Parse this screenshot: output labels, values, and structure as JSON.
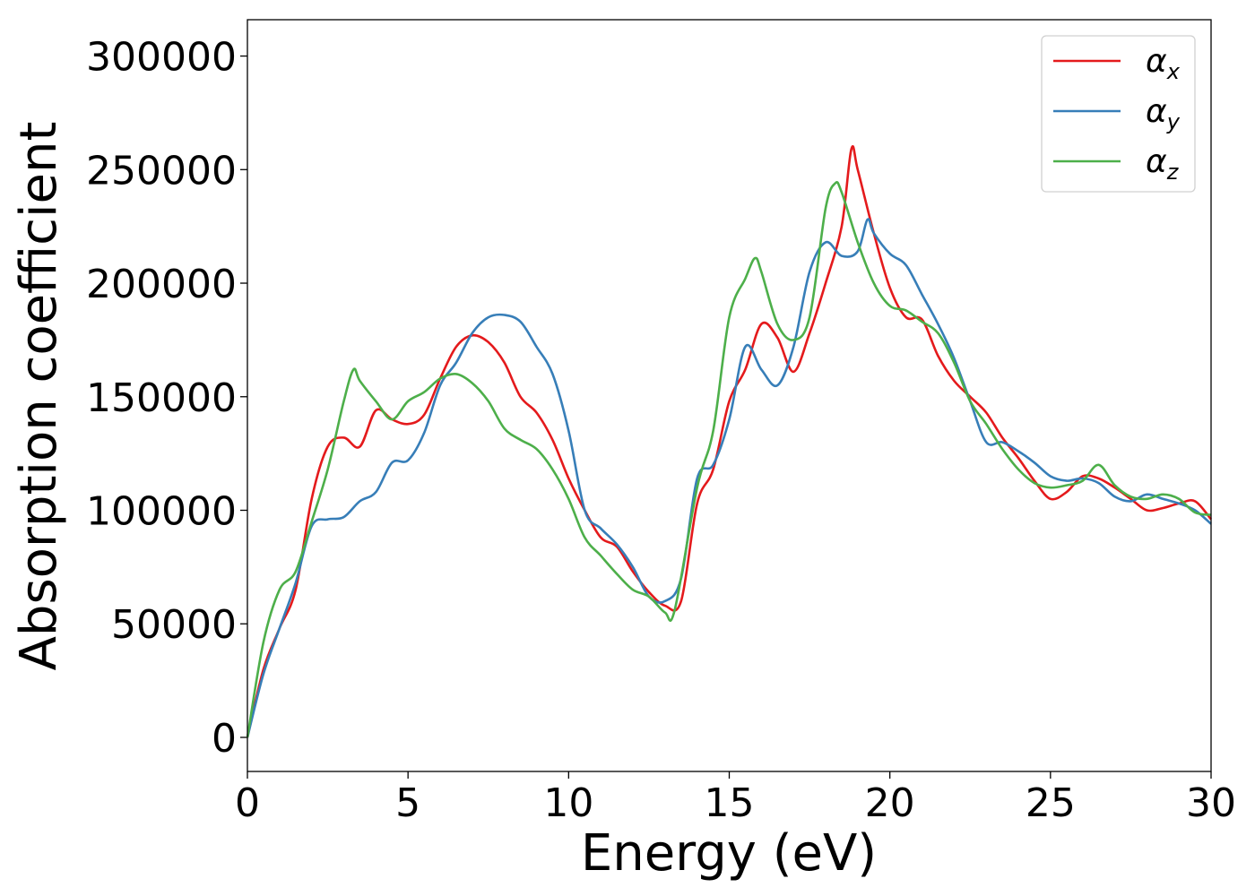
{
  "chart_data": {
    "type": "line",
    "title": "",
    "xlabel": "Energy (eV)",
    "ylabel": "Absorption coefficient",
    "xlim": [
      0,
      30
    ],
    "ylim": [
      -15000,
      316000
    ],
    "xticks": [
      0,
      5,
      10,
      15,
      20,
      25,
      30
    ],
    "yticks": [
      0,
      50000,
      100000,
      150000,
      200000,
      250000,
      300000
    ],
    "grid": false,
    "legend_position": "top-right",
    "series": [
      {
        "name": "α_x",
        "label_main": "α",
        "label_sub": "x",
        "color": "#e41a1c",
        "x": [
          0,
          0.5,
          1,
          1.5,
          2,
          2.5,
          3,
          3.5,
          4,
          4.5,
          5,
          5.5,
          6,
          6.5,
          7,
          7.5,
          8,
          8.5,
          9,
          9.5,
          10,
          10.5,
          11,
          11.5,
          12,
          12.5,
          13,
          13.5,
          14,
          14.5,
          15,
          15.5,
          16,
          16.5,
          17,
          17.5,
          18,
          18.5,
          18.8,
          19,
          19.5,
          20,
          20.5,
          21,
          21.5,
          22,
          22.5,
          23,
          23.5,
          24,
          24.5,
          25,
          25.5,
          26,
          26.5,
          27,
          27.5,
          28,
          28.5,
          29,
          29.5,
          30
        ],
        "y": [
          0,
          30000,
          48000,
          65000,
          105000,
          128000,
          132000,
          128000,
          144000,
          140000,
          138000,
          142000,
          158000,
          172000,
          177000,
          174000,
          165000,
          150000,
          143000,
          131000,
          114000,
          100000,
          88000,
          84000,
          73000,
          64000,
          58000,
          60000,
          103000,
          118000,
          148000,
          162000,
          182000,
          176000,
          161000,
          178000,
          200000,
          225000,
          259000,
          250000,
          222000,
          198000,
          185000,
          184000,
          168000,
          157000,
          150000,
          143000,
          132000,
          123000,
          113000,
          105000,
          108000,
          115000,
          114000,
          110000,
          105000,
          100000,
          101000,
          103000,
          104000,
          96000
        ]
      },
      {
        "name": "α_y",
        "label_main": "α",
        "label_sub": "y",
        "color": "#377eb8",
        "x": [
          0,
          0.5,
          1,
          1.5,
          2,
          2.5,
          3,
          3.5,
          4,
          4.5,
          5,
          5.5,
          6,
          6.5,
          7,
          7.5,
          8,
          8.5,
          9,
          9.5,
          10,
          10.5,
          11,
          11.5,
          12,
          12.5,
          13,
          13.5,
          14,
          14.5,
          15,
          15.5,
          16,
          16.5,
          17,
          17.5,
          18,
          18.5,
          19,
          19.3,
          19.5,
          20,
          20.5,
          21,
          21.5,
          22,
          22.5,
          23,
          23.5,
          24,
          24.5,
          25,
          25.5,
          26,
          26.5,
          27,
          27.5,
          28,
          28.5,
          29,
          29.5,
          30
        ],
        "y": [
          0,
          28000,
          48000,
          68000,
          93000,
          96000,
          97000,
          104000,
          108000,
          121000,
          122000,
          134000,
          155000,
          165000,
          178000,
          185000,
          186000,
          183000,
          172000,
          160000,
          135000,
          100000,
          92000,
          85000,
          75000,
          62000,
          60000,
          70000,
          114000,
          120000,
          140000,
          172000,
          162000,
          155000,
          172000,
          205000,
          218000,
          212000,
          214000,
          228000,
          222000,
          213000,
          208000,
          195000,
          182000,
          167000,
          148000,
          130000,
          130000,
          126000,
          121000,
          115000,
          113000,
          114000,
          112000,
          106000,
          104000,
          107000,
          105000,
          103000,
          100000,
          94000
        ]
      },
      {
        "name": "α_z",
        "label_main": "α",
        "label_sub": "z",
        "color": "#4daf4a",
        "x": [
          0,
          0.5,
          1,
          1.5,
          2,
          2.5,
          3,
          3.3,
          3.5,
          4,
          4.5,
          5,
          5.5,
          6,
          6.5,
          7,
          7.5,
          8,
          8.5,
          9,
          9.5,
          10,
          10.5,
          11,
          11.5,
          12,
          12.5,
          13,
          13.3,
          14,
          14.5,
          15,
          15.5,
          15.8,
          16,
          16.5,
          17,
          17.5,
          18,
          18.3,
          18.5,
          19,
          19.5,
          20,
          20.5,
          21,
          21.5,
          22,
          22.5,
          23,
          23.5,
          24,
          24.5,
          25,
          25.5,
          26,
          26.5,
          27,
          27.5,
          28,
          28.5,
          29,
          29.5,
          30
        ],
        "y": [
          0,
          42000,
          65000,
          73000,
          95000,
          118000,
          148000,
          162000,
          157000,
          148000,
          140000,
          148000,
          152000,
          158000,
          160000,
          156000,
          148000,
          136000,
          131000,
          127000,
          118000,
          105000,
          88000,
          80000,
          72000,
          65000,
          62000,
          55000,
          56000,
          110000,
          135000,
          185000,
          202000,
          211000,
          205000,
          182000,
          175000,
          185000,
          233000,
          244000,
          240000,
          218000,
          200000,
          190000,
          188000,
          183000,
          178000,
          165000,
          148000,
          138000,
          127000,
          118000,
          112000,
          110000,
          111000,
          113000,
          120000,
          111000,
          106000,
          105000,
          107000,
          105000,
          99000,
          98000
        ]
      }
    ]
  }
}
